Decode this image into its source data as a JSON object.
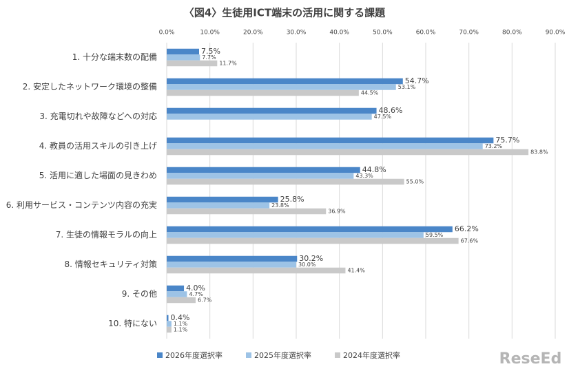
{
  "chart_data": {
    "type": "hbar",
    "title": "〈図4〉生徒用ICT端末の活用に関する課題",
    "categories": [
      "1. 十分な端末数の配備",
      "2. 安定したネットワーク環境の整備",
      "3. 充電切れや故障などへの対応",
      "4. 教員の活用スキルの引き上げ",
      "5. 活用に適した場面の見きわめ",
      "6. 利用サービス・コンテンツ内容の充実",
      "7. 生徒の情報モラルの向上",
      "8. 情報セキュリティ対策",
      "9. その他",
      "10. 特にない"
    ],
    "series": [
      {
        "name": "2026年度選択率",
        "color": "#4a86c8",
        "values": [
          7.5,
          54.7,
          48.6,
          75.7,
          44.8,
          25.8,
          66.2,
          30.2,
          4.0,
          0.4
        ],
        "value_labels": [
          "7.5%",
          "54.7%",
          "48.6%",
          "75.7%",
          "44.8%",
          "25.8%",
          "66.2%",
          "30.2%",
          "4.0%",
          "0.4%"
        ]
      },
      {
        "name": "2025年度選択率",
        "color": "#9dc3e6",
        "values": [
          7.7,
          53.1,
          47.5,
          73.2,
          43.3,
          23.8,
          59.5,
          30.0,
          4.7,
          1.1
        ],
        "value_labels": [
          "7.7%",
          "53.1%",
          "47.5%",
          "73.2%",
          "43.3%",
          "23.8%",
          "59.5%",
          "30.0%",
          "4.7%",
          "1.1%"
        ]
      },
      {
        "name": "2024年度選択率",
        "color": "#c9c9c9",
        "values": [
          11.7,
          44.5,
          null,
          83.8,
          55.0,
          36.9,
          67.6,
          41.4,
          6.7,
          1.1
        ],
        "value_labels": [
          "11.7%",
          "44.5%",
          null,
          "83.8%",
          "55.0%",
          "36.9%",
          "67.6%",
          "41.4%",
          "6.7%",
          "1.1%"
        ]
      }
    ],
    "xlim": [
      0,
      90
    ],
    "xticks": [
      {
        "value": 0,
        "label": "0.0%"
      },
      {
        "value": 10,
        "label": "10.0%"
      },
      {
        "value": 20,
        "label": "20.0%"
      },
      {
        "value": 30,
        "label": "30.0%"
      },
      {
        "value": 40,
        "label": "40.0%"
      },
      {
        "value": 50,
        "label": "50.0%"
      },
      {
        "value": 60,
        "label": "60.0%"
      },
      {
        "value": 70,
        "label": "70.0%"
      },
      {
        "value": 80,
        "label": "80.0%"
      },
      {
        "value": 90,
        "label": "90.0%"
      }
    ],
    "grid": true,
    "legend": "bottom",
    "watermark": "ReseEd"
  }
}
